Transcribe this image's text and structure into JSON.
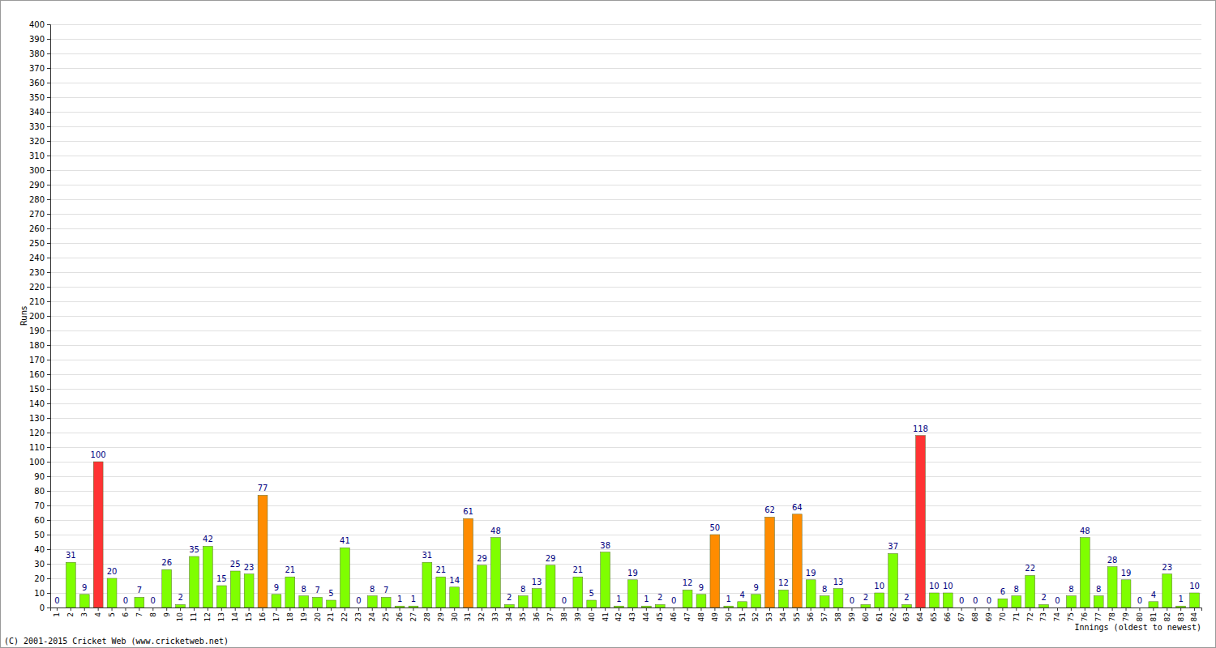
{
  "chart_data": {
    "type": "bar",
    "y_label": "Runs",
    "x_label": "Innings (oldest to newest)",
    "annotations": [
      "(C) 2001-2015 Cricket Web (www.cricketweb.net)"
    ],
    "categories": [
      "1",
      "2",
      "3",
      "4",
      "5",
      "6",
      "7",
      "8",
      "9",
      "10",
      "11",
      "12",
      "13",
      "14",
      "15",
      "16",
      "17",
      "18",
      "19",
      "20",
      "21",
      "22",
      "23",
      "24",
      "25",
      "26",
      "27",
      "28",
      "29",
      "30",
      "31",
      "32",
      "33",
      "34",
      "35",
      "36",
      "37",
      "38",
      "39",
      "40",
      "41",
      "42",
      "43",
      "44",
      "45",
      "46",
      "47",
      "48",
      "49",
      "50",
      "51",
      "52",
      "53",
      "54",
      "55",
      "56",
      "57",
      "58",
      "59",
      "60",
      "61",
      "62",
      "63",
      "64",
      "65",
      "66",
      "67",
      "68",
      "69",
      "70",
      "71",
      "72",
      "73",
      "74",
      "75",
      "76",
      "77",
      "78",
      "79",
      "80",
      "81",
      "82",
      "83",
      "84"
    ],
    "values": [
      0,
      31,
      9,
      100,
      20,
      0,
      7,
      0,
      26,
      2,
      35,
      42,
      15,
      25,
      23,
      77,
      9,
      21,
      8,
      7,
      5,
      41,
      0,
      8,
      7,
      1,
      1,
      31,
      21,
      14,
      61,
      29,
      48,
      2,
      8,
      13,
      29,
      0,
      21,
      5,
      38,
      1,
      19,
      1,
      2,
      0,
      12,
      9,
      50,
      1,
      4,
      9,
      62,
      12,
      64,
      19,
      8,
      13,
      0,
      2,
      10,
      37,
      2,
      118,
      10,
      10,
      0,
      0,
      0,
      6,
      8,
      22,
      2,
      0,
      8,
      48,
      8,
      28,
      19,
      0,
      4,
      23,
      1,
      10
    ],
    "colors": [
      "#7fff00",
      "#7fff00",
      "#7fff00",
      "#ff3333",
      "#7fff00",
      "#7fff00",
      "#7fff00",
      "#7fff00",
      "#7fff00",
      "#7fff00",
      "#7fff00",
      "#7fff00",
      "#7fff00",
      "#7fff00",
      "#7fff00",
      "#ff8c00",
      "#7fff00",
      "#7fff00",
      "#7fff00",
      "#7fff00",
      "#7fff00",
      "#7fff00",
      "#7fff00",
      "#7fff00",
      "#7fff00",
      "#7fff00",
      "#7fff00",
      "#7fff00",
      "#7fff00",
      "#7fff00",
      "#ff8c00",
      "#7fff00",
      "#7fff00",
      "#7fff00",
      "#7fff00",
      "#7fff00",
      "#7fff00",
      "#7fff00",
      "#7fff00",
      "#7fff00",
      "#7fff00",
      "#7fff00",
      "#7fff00",
      "#7fff00",
      "#7fff00",
      "#7fff00",
      "#7fff00",
      "#7fff00",
      "#ff8c00",
      "#7fff00",
      "#7fff00",
      "#7fff00",
      "#ff8c00",
      "#7fff00",
      "#ff8c00",
      "#7fff00",
      "#7fff00",
      "#7fff00",
      "#7fff00",
      "#7fff00",
      "#7fff00",
      "#7fff00",
      "#7fff00",
      "#ff3333",
      "#7fff00",
      "#7fff00",
      "#7fff00",
      "#7fff00",
      "#7fff00",
      "#7fff00",
      "#7fff00",
      "#7fff00",
      "#7fff00",
      "#7fff00",
      "#7fff00",
      "#7fff00",
      "#7fff00",
      "#7fff00",
      "#7fff00",
      "#7fff00",
      "#7fff00",
      "#7fff00",
      "#7fff00",
      "#7fff00"
    ],
    "ylim": [
      0,
      400
    ],
    "yticks": [
      0,
      10,
      20,
      30,
      40,
      50,
      60,
      70,
      80,
      90,
      100,
      110,
      120,
      130,
      140,
      150,
      160,
      170,
      180,
      190,
      200,
      210,
      220,
      230,
      240,
      250,
      260,
      270,
      280,
      290,
      300,
      310,
      320,
      330,
      340,
      350,
      360,
      370,
      380,
      390,
      400
    ],
    "grid": true,
    "data_labels": true
  }
}
